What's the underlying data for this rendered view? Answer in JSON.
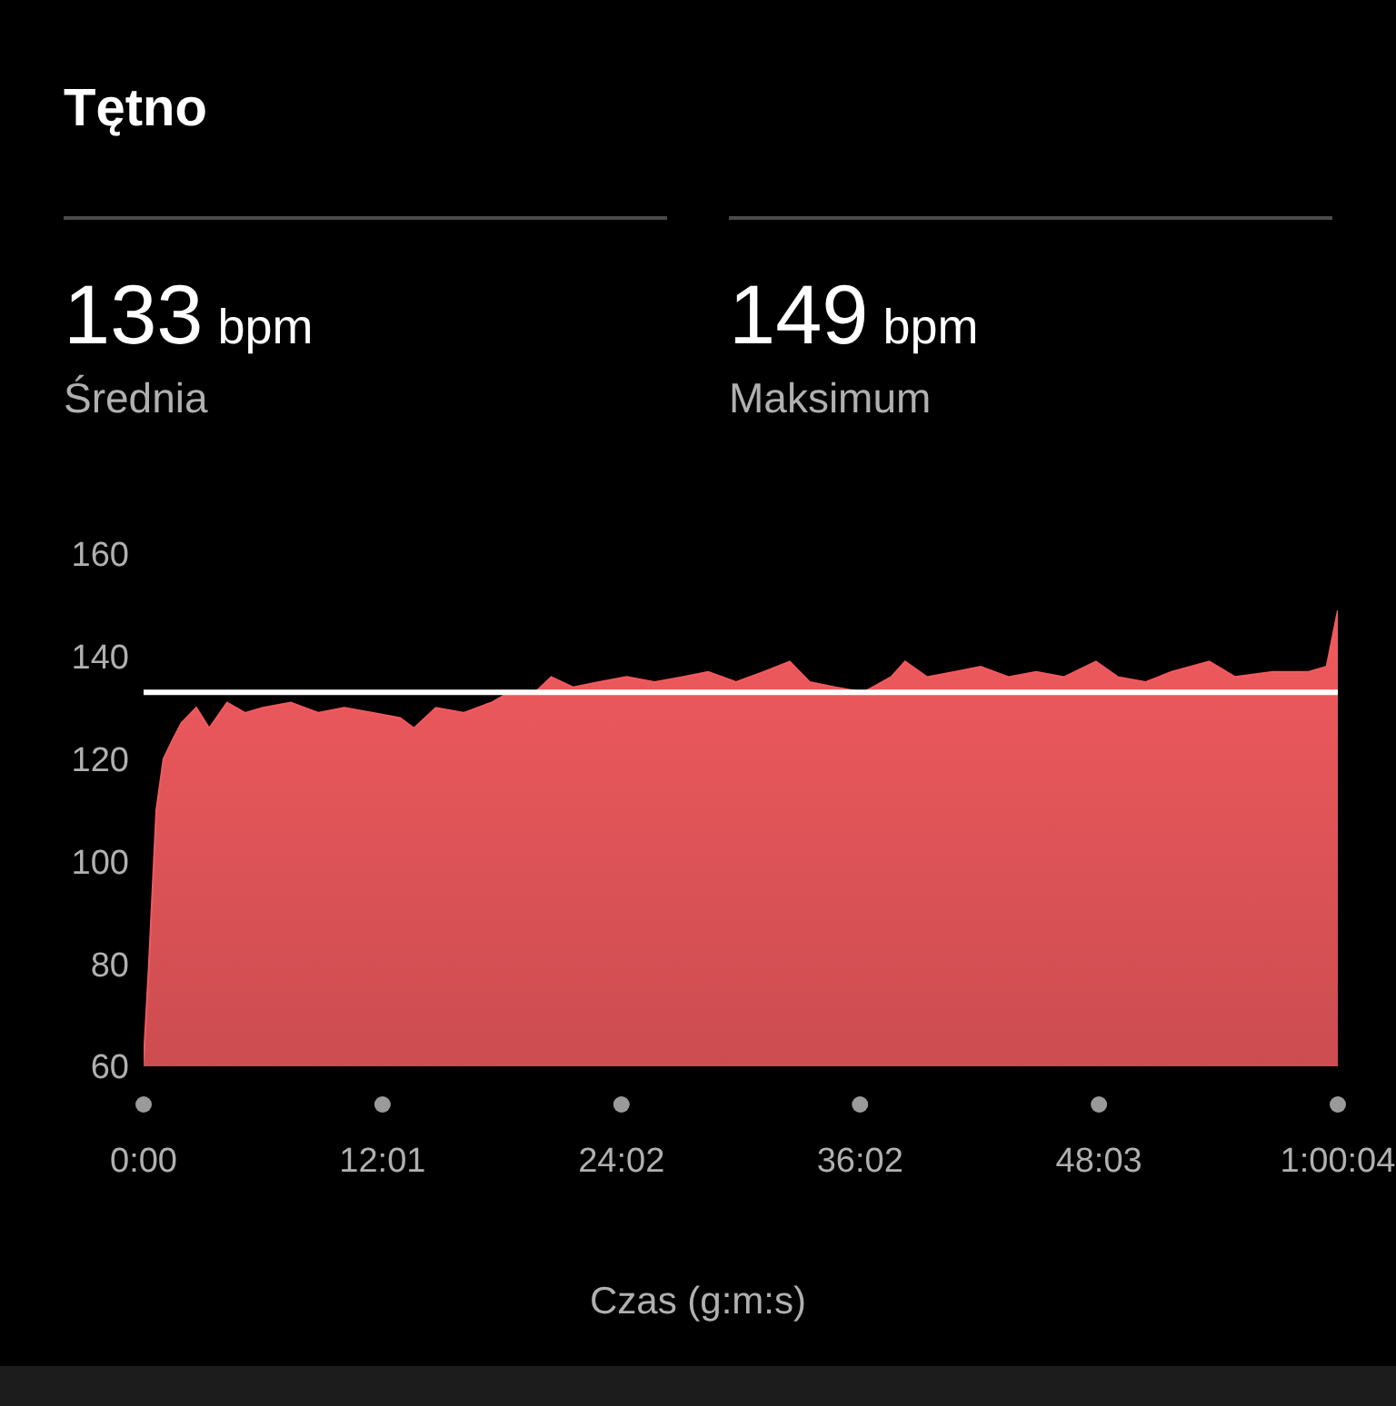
{
  "chart_data": {
    "type": "area",
    "title": "Tętno",
    "xlabel": "Czas (g:m:s)",
    "annotations": [
      "133 bpm",
      "Średnia",
      "149 bpm",
      "Maksimum"
    ],
    "x": [
      0,
      0.27,
      0.64,
      1.0,
      1.5,
      1.9,
      2.65,
      3.3,
      4.2,
      5.1,
      6.0,
      7.4,
      8.8,
      10.1,
      11.5,
      12.9,
      13.6,
      14.7,
      16.1,
      17.5,
      18.4,
      19.7,
      20.5,
      21.6,
      22.9,
      24.3,
      25.7,
      27.1,
      28.4,
      29.8,
      31.2,
      32.5,
      33.5,
      34.8,
      36.2,
      37.6,
      38.3,
      39.4,
      40.8,
      42.1,
      43.5,
      44.9,
      46.3,
      47.9,
      49.0,
      50.4,
      51.7,
      53.6,
      54.9,
      56.8,
      58.6,
      59.5,
      60.0667
    ],
    "series": [
      {
        "color": "#f05a5e",
        "values": [
          61,
          80,
          110,
          120,
          124,
          127,
          130,
          126,
          131,
          129,
          130,
          131,
          129,
          130,
          129,
          128,
          126,
          130,
          129,
          131,
          133,
          133,
          136,
          134,
          135,
          136,
          135,
          136,
          137,
          135,
          137,
          139,
          135,
          134,
          133,
          136,
          139,
          136,
          137,
          138,
          136,
          137,
          136,
          139,
          136,
          135,
          137,
          139,
          136,
          137,
          137,
          138,
          149
        ]
      }
    ],
    "xlim": [
      0,
      60.0667
    ],
    "xticks": [
      {
        "value": 0,
        "label": "0:00"
      },
      {
        "value": 12.0167,
        "label": "12:01"
      },
      {
        "value": 24.0333,
        "label": "24:02"
      },
      {
        "value": 36.0333,
        "label": "36:02"
      },
      {
        "value": 48.05,
        "label": "48:03"
      },
      {
        "value": 60.0667,
        "label": "1:00:04"
      }
    ],
    "ylim": [
      60,
      160
    ],
    "yticks": [
      60,
      80,
      100,
      120,
      140,
      160
    ],
    "ref_lines": [
      {
        "axis": "y",
        "value": 133,
        "color": "#ffffff"
      }
    ],
    "grid": false,
    "legend": false
  }
}
